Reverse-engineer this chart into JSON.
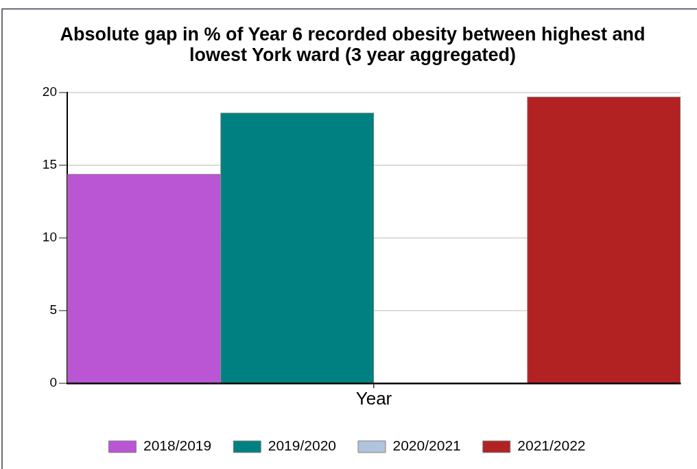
{
  "chart_data": {
    "type": "bar",
    "title": "Absolute gap in % of Year 6 recorded obesity between highest and lowest York ward (3 year aggregated)",
    "xlabel": "Year",
    "categories": [
      null
    ],
    "series": [
      {
        "name": "2018/2019",
        "color": "#ba55d3",
        "values": [
          14.4
        ]
      },
      {
        "name": "2019/2020",
        "color": "#008080",
        "values": [
          18.6
        ]
      },
      {
        "name": "2020/2021",
        "color": "#b0c4de",
        "values": [
          null
        ]
      },
      {
        "name": "2021/2022",
        "color": "#b22222",
        "values": [
          19.7
        ]
      }
    ],
    "ylim": [
      0,
      20
    ],
    "yticks": [
      0,
      5,
      10,
      15,
      20
    ],
    "grid": "y",
    "legend": "bottom"
  }
}
